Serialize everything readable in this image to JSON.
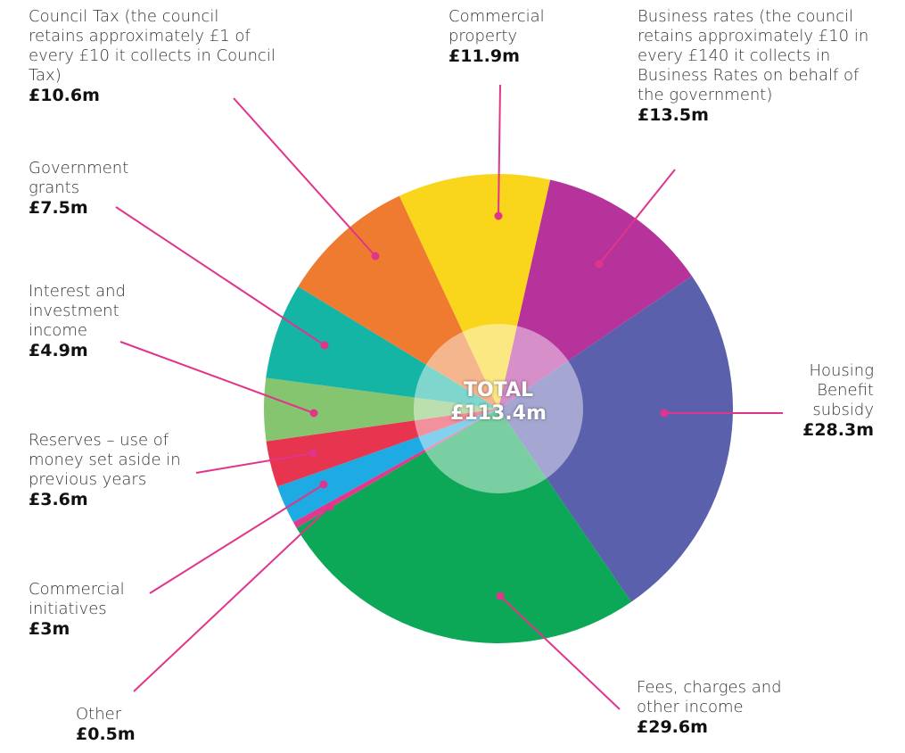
{
  "chart_data": {
    "type": "pie",
    "categories": [
      "Commercial property",
      "Business rates (the council retains approximately £10 in every £140 it collects in Business Rates on behalf of the government)",
      "Housing Benefit subsidy",
      "Fees, charges and other income",
      "Other",
      "Commercial initiatives",
      "Reserves – use of money set aside in previous years",
      "Interest and investment income",
      "Government grants",
      "Council Tax (the council retains approximately £1 of every £10 it collects in Council Tax)"
    ],
    "values": [
      11.9,
      13.5,
      28.3,
      29.6,
      0.5,
      3,
      3.6,
      4.9,
      7.5,
      10.6
    ],
    "value_labels": [
      "£11.9m",
      "£13.5m",
      "£28.3m",
      "£29.6m",
      "£0.5m",
      "£3m",
      "£3.6m",
      "£4.9m",
      "£7.5m",
      "£10.6m"
    ],
    "colors": [
      "#f9d51c",
      "#b5339b",
      "#5b60ad",
      "#0ca857",
      "#e2378c",
      "#1eaae2",
      "#e8354f",
      "#86c56f",
      "#14b5a5",
      "#ef7b31"
    ],
    "total_title": "TOTAL",
    "total": 113.4,
    "total_label": "£113.4m"
  }
}
